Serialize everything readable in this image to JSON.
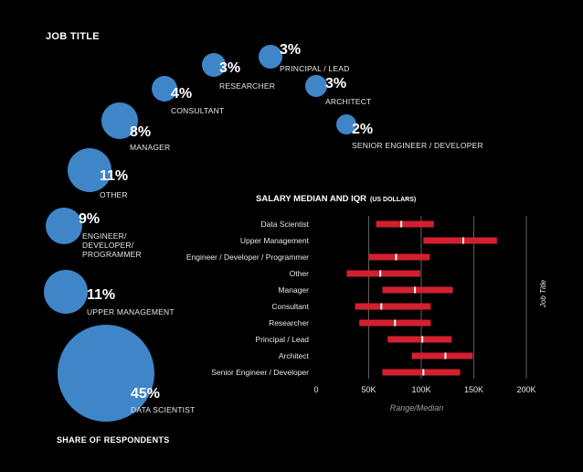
{
  "headings": {
    "job_title": "JOB TITLE",
    "share": "SHARE OF RESPONDENTS"
  },
  "bubbles": [
    {
      "pct": "45%",
      "label": "DATA SCIENTIST",
      "value": 45
    },
    {
      "pct": "11%",
      "label": "UPPER MANAGEMENT",
      "value": 11
    },
    {
      "pct": "9%",
      "label": "ENGINEER/\nDEVELOPER/\nPROGRAMMER",
      "value": 9
    },
    {
      "pct": "11%",
      "label": "OTHER",
      "value": 11
    },
    {
      "pct": "8%",
      "label": "MANAGER",
      "value": 8
    },
    {
      "pct": "4%",
      "label": "CONSULTANT",
      "value": 4
    },
    {
      "pct": "3%",
      "label": "RESEARCHER",
      "value": 3
    },
    {
      "pct": "3%",
      "label": "PRINCIPAL / LEAD",
      "value": 3
    },
    {
      "pct": "3%",
      "label": "ARCHITECT",
      "value": 3
    },
    {
      "pct": "2%",
      "label": "SENIOR ENGINEER / DEVELOPER",
      "value": 2
    }
  ],
  "colors": {
    "bubble": "#3f86c9",
    "bar": "#d2202f",
    "median": "#ffffff",
    "grid": "#8a8a8a"
  },
  "chart_data": [
    {
      "type": "bubble",
      "title": "JOB TITLE",
      "xlabel": "SHARE OF RESPONDENTS",
      "categories": [
        "DATA SCIENTIST",
        "UPPER MANAGEMENT",
        "ENGINEER/DEVELOPER/PROGRAMMER",
        "OTHER",
        "MANAGER",
        "CONSULTANT",
        "RESEARCHER",
        "PRINCIPAL / LEAD",
        "ARCHITECT",
        "SENIOR ENGINEER / DEVELOPER"
      ],
      "values": [
        45,
        11,
        9,
        11,
        8,
        4,
        3,
        3,
        3,
        2
      ]
    },
    {
      "type": "range-bar",
      "title_main": "SALARY MEDIAN AND IQR",
      "title_unit": "(US DOLLARS)",
      "xlabel": "Range/Median",
      "ylabel": "Job Title",
      "xlim": [
        0,
        200000
      ],
      "xticks": [
        0,
        50000,
        100000,
        150000,
        200000
      ],
      "xtick_labels": [
        "0",
        "50K",
        "100K",
        "150K",
        "200K"
      ],
      "grid": true,
      "categories": [
        "Data Scientist",
        "Upper Management",
        "Engineer / Developer / Programmer",
        "Other",
        "Manager",
        "Consultant",
        "Researcher",
        "Principal / Lead",
        "Architect",
        "Senior Engineer / Developer"
      ],
      "q1": [
        57000,
        102000,
        50000,
        29000,
        63000,
        37000,
        41000,
        68000,
        91000,
        63000
      ],
      "q3": [
        112000,
        172000,
        108000,
        99000,
        130000,
        109000,
        109000,
        129000,
        149000,
        137000
      ],
      "median": [
        81000,
        140000,
        76000,
        61000,
        94000,
        62000,
        75000,
        101000,
        123000,
        102000
      ]
    }
  ]
}
